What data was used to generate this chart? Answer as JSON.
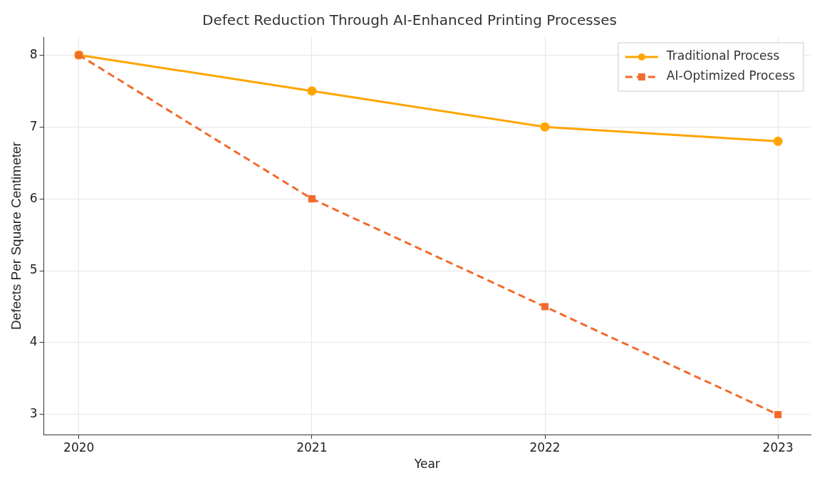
{
  "chart_data": {
    "type": "line",
    "title": "Defect Reduction Through AI-Enhanced Printing Processes",
    "xlabel": "Year",
    "ylabel": "Defects Per Square Centimeter",
    "x": [
      2020,
      2021,
      2022,
      2023
    ],
    "xlim": [
      2019.85,
      2023.14
    ],
    "xticks": [
      2020,
      2021,
      2022,
      2023
    ],
    "ylim": [
      2.72,
      8.25
    ],
    "yticks": [
      3,
      4,
      5,
      6,
      7,
      8
    ],
    "grid": true,
    "legend": "top right",
    "series": [
      {
        "name": "Traditional Process",
        "color": "#ffa500",
        "values": [
          8,
          7.5,
          7,
          6.8
        ],
        "marker": "circle",
        "line_style": "solid"
      },
      {
        "name": "AI-Optimized Process",
        "color": "#f26b2c",
        "values": [
          8,
          6,
          4.5,
          3
        ],
        "marker": "square",
        "line_style": "dashed"
      }
    ]
  }
}
